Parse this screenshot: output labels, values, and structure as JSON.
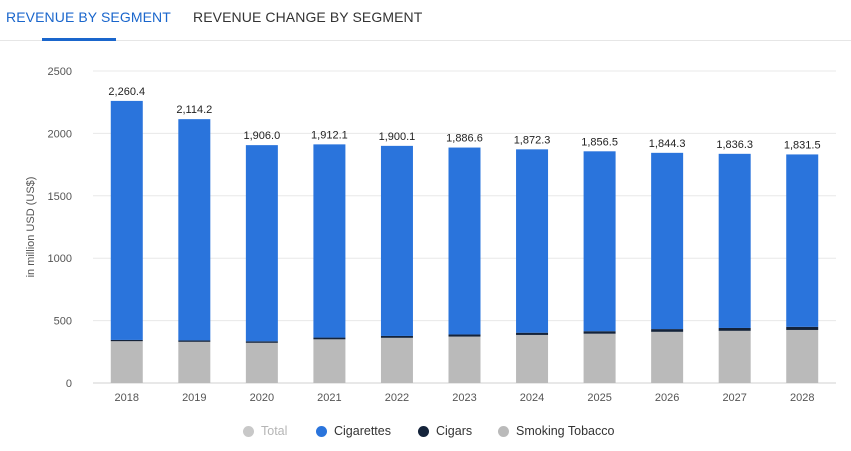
{
  "tabs": {
    "active": "REVENUE BY SEGMENT",
    "inactive": "REVENUE CHANGE BY SEGMENT"
  },
  "colors": {
    "cigarettes": "#2a74dc",
    "cigars": "#14233a",
    "smoking_tobacco": "#bababa",
    "total": "#c8c8c8"
  },
  "chart_data": {
    "type": "bar",
    "stacked": true,
    "ylabel": "in million USD (US$)",
    "ylim": [
      0,
      2500
    ],
    "yticks": [
      0,
      500,
      1000,
      1500,
      2000,
      2500
    ],
    "grid": true,
    "legend_position": "bottom",
    "categories": [
      "2018",
      "2019",
      "2020",
      "2021",
      "2022",
      "2023",
      "2024",
      "2025",
      "2026",
      "2027",
      "2028"
    ],
    "totals": [
      "2,260.4",
      "2,114.2",
      "1,906.0",
      "1,912.1",
      "1,900.1",
      "1,886.6",
      "1,872.3",
      "1,856.5",
      "1,844.3",
      "1,836.3",
      "1,831.5"
    ],
    "series": [
      {
        "name": "Smoking Tobacco",
        "values": [
          335,
          330,
          322,
          350,
          362,
          372,
          385,
          395,
          410,
          418,
          425
        ]
      },
      {
        "name": "Cigars",
        "values": [
          10,
          11,
          12,
          14,
          15,
          17,
          18,
          20,
          22,
          23,
          25
        ]
      },
      {
        "name": "Cigarettes",
        "values": [
          1915.4,
          1773.2,
          1572.0,
          1548.1,
          1523.1,
          1497.6,
          1469.3,
          1441.5,
          1412.3,
          1395.3,
          1381.5
        ]
      }
    ],
    "legend": [
      {
        "name": "Total",
        "hidden": true
      },
      {
        "name": "Cigarettes",
        "hidden": false
      },
      {
        "name": "Cigars",
        "hidden": false
      },
      {
        "name": "Smoking Tobacco",
        "hidden": false
      }
    ]
  }
}
